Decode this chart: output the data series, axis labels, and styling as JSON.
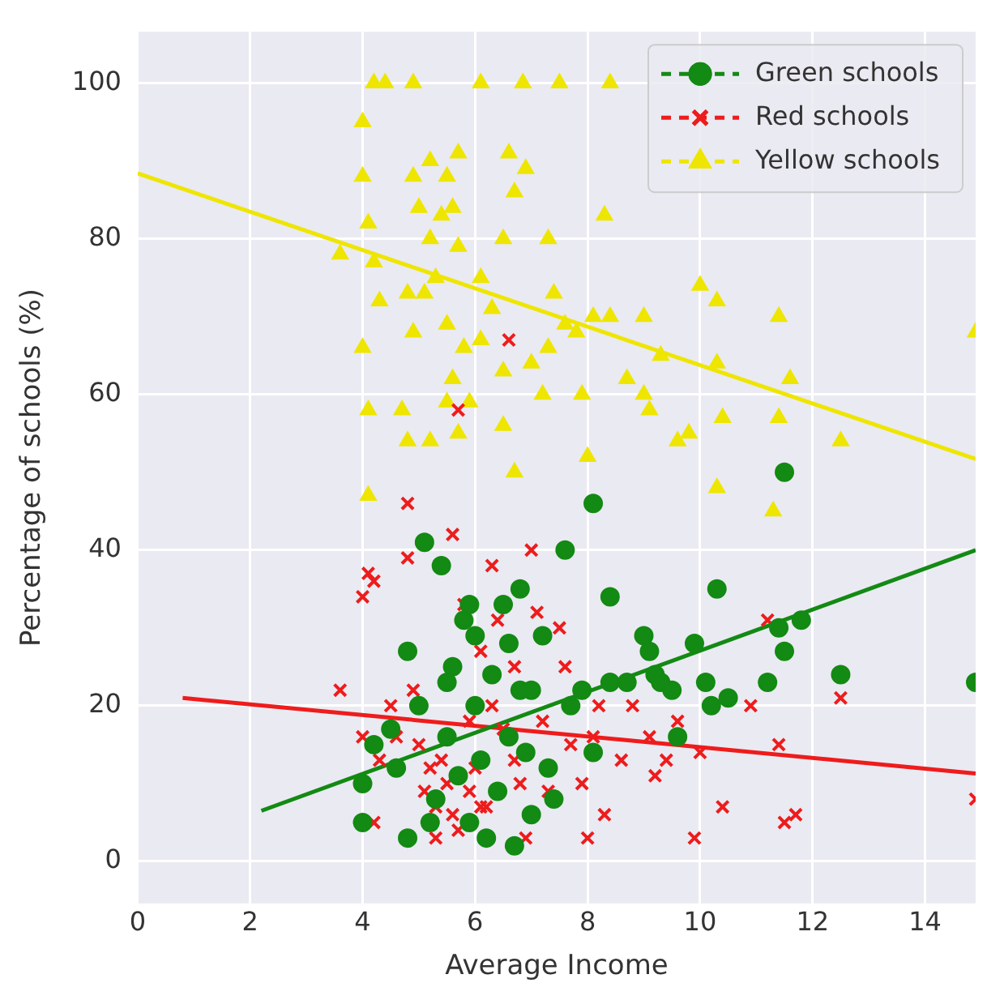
{
  "chart_data": {
    "type": "scatter",
    "xlabel": "Average Income",
    "ylabel": "Percentage of schools (%)",
    "xlim": [
      0,
      14.9
    ],
    "ylim": [
      -5.4,
      106.6
    ],
    "xticks": [
      0,
      2,
      4,
      6,
      8,
      10,
      12,
      14
    ],
    "yticks": [
      0,
      20,
      40,
      60,
      80,
      100
    ],
    "grid": true,
    "legend": "top right",
    "series": [
      {
        "name": "Green schools",
        "color": "#138a13",
        "marker": "circle",
        "x": [
          4,
          4,
          4.2,
          4.5,
          4.6,
          4.8,
          4.8,
          5,
          5.1,
          5.3,
          5.4,
          5.5,
          5.5,
          5.6,
          5.7,
          5.8,
          5.9,
          5.9,
          6,
          6,
          6.1,
          6.2,
          6.3,
          6.4,
          6.5,
          6.6,
          6.6,
          6.8,
          6.8,
          6.9,
          7,
          7,
          7.2,
          7.3,
          7.4,
          7.6,
          7.7,
          7.9,
          8.1,
          8.1,
          8.4,
          8.4,
          8.7,
          9,
          9.1,
          9.2,
          9.3,
          9.5,
          9.6,
          9.9,
          10.1,
          10.2,
          10.3,
          10.5,
          11.2,
          11.4,
          11.5,
          11.5,
          11.8,
          12.5,
          14.9,
          6.7,
          5.2
        ],
        "values": [
          10,
          5,
          15,
          17,
          12,
          27,
          3,
          20,
          41,
          8,
          38,
          23,
          16,
          25,
          11,
          31,
          33,
          5,
          29,
          20,
          13,
          3,
          24,
          9,
          33,
          16,
          28,
          35,
          22,
          14,
          6,
          22,
          29,
          12,
          8,
          40,
          20,
          22,
          46,
          14,
          34,
          23,
          23,
          29,
          27,
          24,
          23,
          22,
          16,
          28,
          23,
          20,
          35,
          21,
          23,
          30,
          27,
          50,
          31,
          24,
          23,
          2,
          5
        ]
      },
      {
        "name": "Red schools",
        "color": "#ee1c1c",
        "marker": "cross",
        "x": [
          3.6,
          4,
          4,
          4.1,
          4.2,
          4.2,
          4.3,
          4.5,
          4.6,
          4.8,
          4.8,
          4.9,
          5,
          5.1,
          5.2,
          5.3,
          5.3,
          5.4,
          5.5,
          5.6,
          5.6,
          5.7,
          5.8,
          5.9,
          5.9,
          6,
          6.1,
          6.1,
          6.2,
          6.3,
          6.3,
          6.4,
          6.5,
          6.6,
          6.7,
          6.7,
          6.8,
          6.9,
          7,
          7.1,
          7.2,
          7.3,
          7.5,
          7.6,
          7.7,
          7.9,
          8,
          8.1,
          8.2,
          8.3,
          8.6,
          8.8,
          9.1,
          9.2,
          9.4,
          9.6,
          9.9,
          10,
          10.4,
          10.9,
          11.2,
          11.4,
          11.5,
          11.7,
          12.5,
          14.9,
          5.7
        ],
        "values": [
          22,
          34,
          16,
          37,
          36,
          5,
          13,
          20,
          16,
          46,
          39,
          22,
          15,
          9,
          12,
          7,
          3,
          13,
          10,
          42,
          6,
          4,
          33,
          18,
          9,
          12,
          27,
          7,
          7,
          38,
          20,
          31,
          17,
          67,
          25,
          13,
          10,
          3,
          40,
          32,
          18,
          9,
          30,
          25,
          15,
          10,
          3,
          16,
          20,
          6,
          13,
          20,
          16,
          11,
          13,
          18,
          3,
          14,
          7,
          20,
          31,
          15,
          5,
          6,
          21,
          8,
          58
        ]
      },
      {
        "name": "Yellow schools",
        "color": "#eee600",
        "marker": "triangle",
        "x": [
          4.2,
          4.4,
          4.9,
          6.1,
          6.85,
          7.5,
          8.4,
          4,
          4,
          4.1,
          4.2,
          4.3,
          4,
          4.1,
          4.1,
          3.6,
          4.9,
          5.2,
          5.5,
          5.7,
          5.6,
          5.4,
          5,
          5.2,
          5.7,
          5.3,
          5.1,
          4.8,
          4.9,
          5.5,
          5.8,
          5.6,
          5.5,
          5.9,
          4.7,
          4.8,
          5.2,
          5.7,
          6.1,
          6.3,
          6.1,
          6.5,
          6.7,
          6.6,
          6.9,
          6.5,
          6.5,
          6.7,
          7,
          7.2,
          7.3,
          7.3,
          7.4,
          7.6,
          7.8,
          7.9,
          8,
          8.3,
          8.1,
          8.4,
          8.7,
          9,
          9.1,
          9.3,
          9.8,
          9.6,
          9,
          10,
          10.3,
          10.3,
          10.4,
          10.3,
          11.3,
          11.4,
          11.4,
          11.6,
          12.5,
          14.9
        ],
        "values": [
          100,
          100,
          100,
          100,
          100,
          100,
          100,
          95,
          88,
          82,
          77,
          72,
          66,
          58,
          47,
          78,
          88,
          90,
          88,
          91,
          84,
          83,
          84,
          80,
          79,
          75,
          73,
          73,
          68,
          69,
          66,
          62,
          59,
          59,
          58,
          54,
          54,
          55,
          67,
          71,
          75,
          80,
          86,
          91,
          89,
          63,
          56,
          50,
          64,
          60,
          66,
          80,
          73,
          69,
          68,
          60,
          52,
          83,
          70,
          70,
          62,
          60,
          58,
          65,
          55,
          54,
          70,
          74,
          72,
          64,
          57,
          48,
          45,
          57,
          70,
          62,
          54,
          68
        ]
      },
      {
        "type": "line",
        "color": "#138a13",
        "x": [
          2.2,
          14.9
        ],
        "values": [
          6.5,
          40
        ]
      },
      {
        "type": "line",
        "color": "#ee1c1c",
        "x": [
          0.8,
          14.9
        ],
        "values": [
          21,
          11.3
        ]
      },
      {
        "type": "line",
        "color": "#eee600",
        "x": [
          0,
          14.9
        ],
        "values": [
          88.4,
          51.7
        ]
      }
    ]
  }
}
